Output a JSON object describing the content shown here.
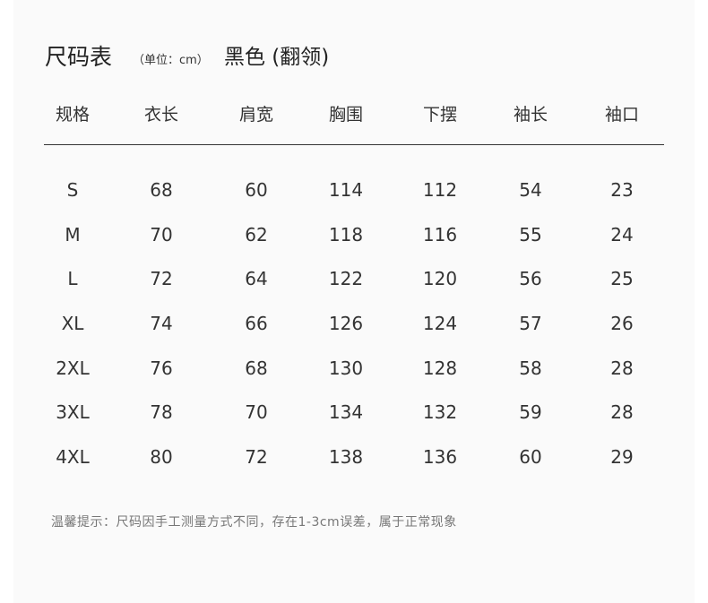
{
  "title": "尺码表",
  "unit": "（单位：cm）",
  "color_label": "黑色 (翻领)",
  "headers": [
    "规格",
    "衣长",
    "肩宽",
    "胸围",
    "下摆",
    "袖长",
    "袖口"
  ],
  "rows": [
    [
      "S",
      "68",
      "60",
      "114",
      "112",
      "54",
      "23"
    ],
    [
      "M",
      "70",
      "62",
      "118",
      "116",
      "55",
      "24"
    ],
    [
      "L",
      "72",
      "64",
      "122",
      "120",
      "56",
      "25"
    ],
    [
      "XL",
      "74",
      "66",
      "126",
      "124",
      "57",
      "26"
    ],
    [
      "2XL",
      "76",
      "68",
      "130",
      "128",
      "58",
      "28"
    ],
    [
      "3XL",
      "78",
      "70",
      "134",
      "132",
      "59",
      "28"
    ],
    [
      "4XL",
      "80",
      "72",
      "138",
      "136",
      "60",
      "29"
    ]
  ],
  "note": "温馨提示：尺码因手工测量方式不同，存在1-3cm误差，属于正常现象"
}
